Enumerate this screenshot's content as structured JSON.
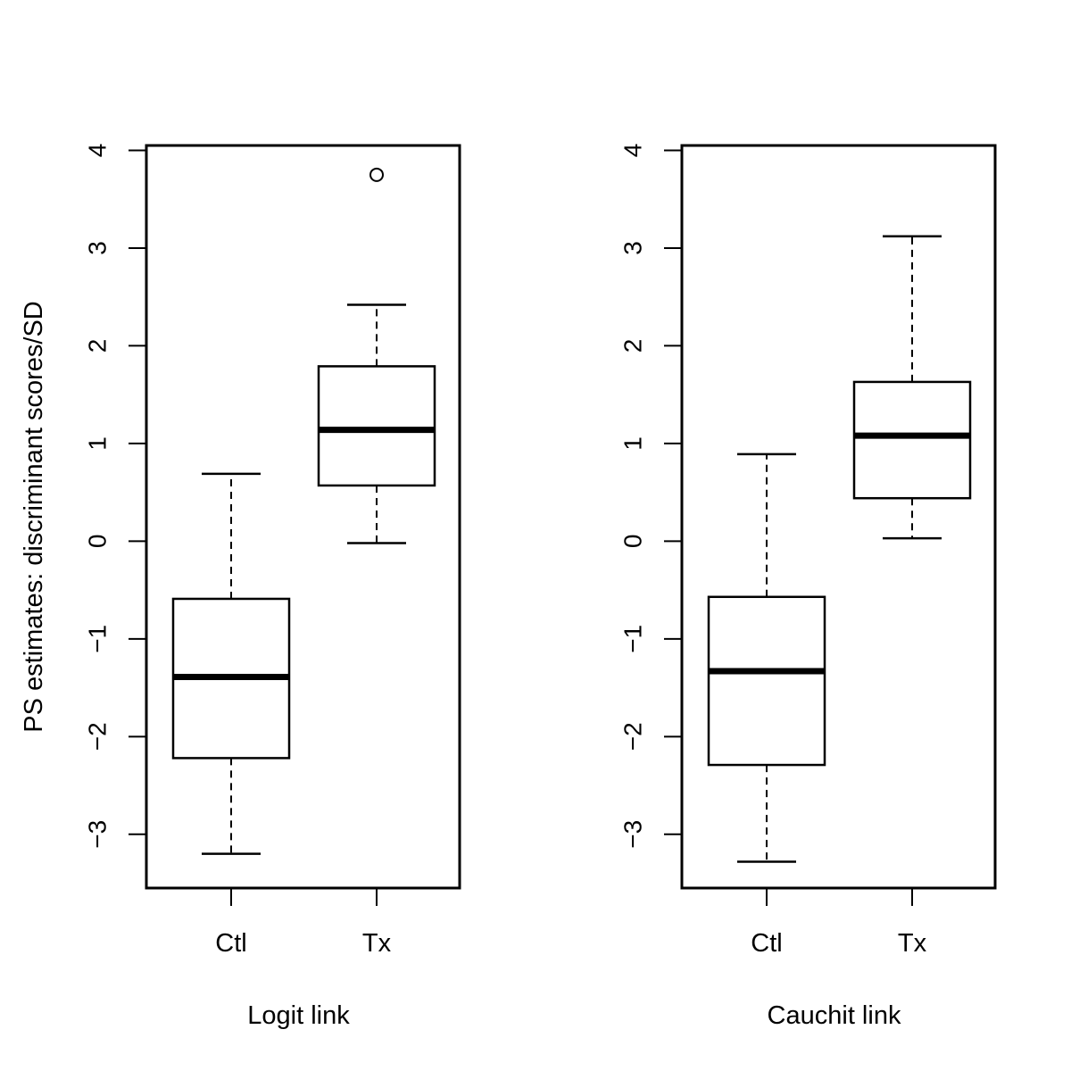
{
  "chart_data": [
    {
      "type": "box",
      "title": "",
      "xlabel": "Logit link",
      "ylabel": "PS estimates: discriminant scores/SD",
      "ylim": [
        -3.55,
        4.05
      ],
      "yticks": [
        "-3",
        "-2",
        "-1",
        "0",
        "1",
        "2",
        "3",
        "4"
      ],
      "categories": [
        "Ctl",
        "Tx"
      ],
      "boxes": [
        {
          "category": "Ctl",
          "whisker_low": -3.2,
          "q1": -2.22,
          "median": -1.39,
          "q3": -0.59,
          "whisker_high": 0.69,
          "outliers": []
        },
        {
          "category": "Tx",
          "whisker_low": -0.02,
          "q1": 0.57,
          "median": 1.14,
          "q3": 1.79,
          "whisker_high": 2.42,
          "outliers": [
            3.75
          ]
        }
      ]
    },
    {
      "type": "box",
      "title": "",
      "xlabel": "Cauchit link",
      "ylabel": "",
      "ylim": [
        -3.55,
        4.05
      ],
      "yticks": [
        "-3",
        "-2",
        "-1",
        "0",
        "1",
        "2",
        "3",
        "4"
      ],
      "categories": [
        "Ctl",
        "Tx"
      ],
      "boxes": [
        {
          "category": "Ctl",
          "whisker_low": -3.28,
          "q1": -2.29,
          "median": -1.33,
          "q3": -0.57,
          "whisker_high": 0.89,
          "outliers": []
        },
        {
          "category": "Tx",
          "whisker_low": 0.03,
          "q1": 0.44,
          "median": 1.08,
          "q3": 1.63,
          "whisker_high": 3.12,
          "outliers": []
        }
      ]
    }
  ]
}
